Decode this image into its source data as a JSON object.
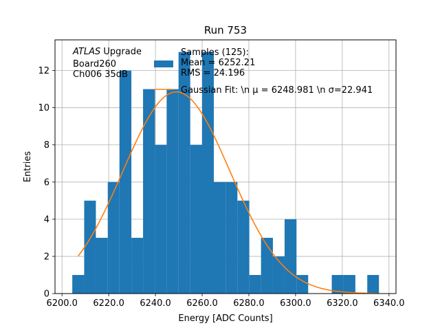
{
  "chart_data": {
    "type": "histogram",
    "title": "Run 753",
    "xlabel": "Energy [ADC Counts]",
    "ylabel": "Entries",
    "xlim": [
      6197,
      6343
    ],
    "ylim": [
      0,
      13.65
    ],
    "xticks": [
      6200,
      6220,
      6240,
      6260,
      6280,
      6300,
      6320,
      6340
    ],
    "xtick_labels": [
      "6200.0",
      "6220.0",
      "6240.0",
      "6260.0",
      "6280.0",
      "6300.0",
      "6320.0",
      "6340.0"
    ],
    "yticks": [
      0,
      2,
      4,
      6,
      8,
      10,
      12
    ],
    "ytick_labels": [
      "0",
      "2",
      "4",
      "6",
      "8",
      "10",
      "12"
    ],
    "grid": true,
    "bar_color": "#1f77b4",
    "fit_color": "#ff7f0e",
    "bins": {
      "edges": [
        6204.4,
        6209.5,
        6214.5,
        6219.6,
        6224.6,
        6229.7,
        6234.7,
        6239.8,
        6244.8,
        6249.9,
        6254.9,
        6260.0,
        6265.0,
        6270.1,
        6275.1,
        6280.2,
        6285.2,
        6290.3,
        6295.3,
        6300.4,
        6305.4,
        6310.5,
        6315.5,
        6320.6,
        6325.6,
        6330.7,
        6335.7
      ],
      "counts": [
        1,
        5,
        3,
        6,
        12,
        3,
        11,
        8,
        11,
        13,
        8,
        13,
        6,
        6,
        5,
        1,
        3,
        2,
        4,
        1,
        0,
        0,
        1,
        1,
        0,
        1
      ]
    },
    "fit": {
      "name": "Gaussian Fit",
      "mu": 6248.981,
      "sigma": 22.941,
      "amplitude": 10.85,
      "x_range": [
        6206.9,
        6335.0
      ]
    },
    "legend": {
      "position": "top-right",
      "entries": [
        {
          "type": "patch",
          "lines": [
            "Samples (125):",
            " Mean = 6252.21",
            " RMS = 24.196"
          ]
        },
        {
          "type": "line",
          "lines": [
            "Gaussian Fit: \\n μ = 6248.981 \\n σ=22.941"
          ]
        }
      ]
    },
    "annotation": {
      "italic": "ATLAS",
      "normal": " Upgrade",
      "lines": [
        " Board260",
        " Ch006 35dB"
      ]
    }
  }
}
